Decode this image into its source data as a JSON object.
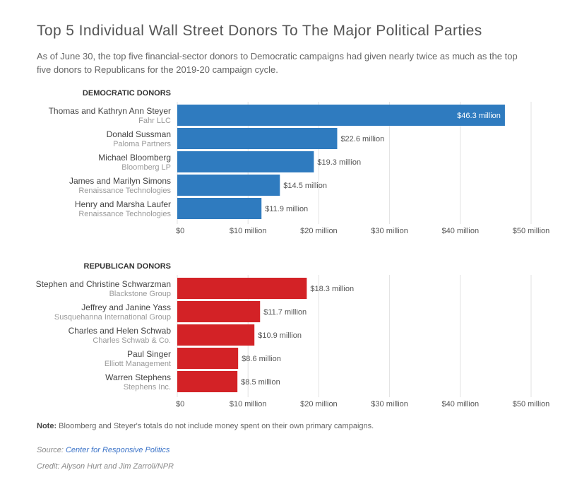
{
  "title": "Top 5 Individual Wall Street Donors To The Major Political Parties",
  "subtitle": "As of June 30, the top five financial-sector donors to Democratic campaigns had given nearly twice as much as the top five donors to Republicans for the 2019-20 campaign cycle.",
  "note": {
    "label": "Note:",
    "text": "Bloomberg and Steyer's totals do not include money spent on their own primary campaigns."
  },
  "source": {
    "label": "Source:",
    "link_text": "Center for Responsive Politics"
  },
  "credit": "Credit: Alyson Hurt and Jim Zarroli/NPR",
  "colors": {
    "democratic": "#2f7bbf",
    "republican": "#d32226",
    "grid": "#e2e2e2"
  },
  "chart_data": [
    {
      "type": "bar",
      "orientation": "horizontal",
      "title": "DEMOCRATIC DONORS",
      "color": "#2f7bbf",
      "categories": [
        "Thomas and Kathryn Ann Steyer",
        "Donald Sussman",
        "Michael Bloomberg",
        "James and Marilyn Simons",
        "Henry and Marsha Laufer"
      ],
      "subcategories": [
        "Fahr LLC",
        "Paloma Partners",
        "Bloomberg LP",
        "Renaissance Technologies",
        "Renaissance Technologies"
      ],
      "values": [
        46.3,
        22.6,
        19.3,
        14.5,
        11.9
      ],
      "value_labels": [
        "$46.3 million",
        "$22.6 million",
        "$19.3 million",
        "$14.5 million",
        "$11.9 million"
      ],
      "xlim": [
        0,
        50
      ],
      "xticks": [
        0,
        10,
        20,
        30,
        40,
        50
      ],
      "xtick_labels": [
        "$0",
        "$10 million",
        "$20 million",
        "$30 million",
        "$40 million",
        "$50 million"
      ],
      "grid": true
    },
    {
      "type": "bar",
      "orientation": "horizontal",
      "title": "REPUBLICAN DONORS",
      "color": "#d32226",
      "categories": [
        "Stephen and Christine Schwarzman",
        "Jeffrey and Janine Yass",
        "Charles and Helen Schwab",
        "Paul Singer",
        "Warren Stephens"
      ],
      "subcategories": [
        "Blackstone Group",
        "Susquehanna International Group",
        "Charles Schwab & Co.",
        "Elliott Management",
        "Stephens Inc."
      ],
      "values": [
        18.3,
        11.7,
        10.9,
        8.6,
        8.5
      ],
      "value_labels": [
        "$18.3 million",
        "$11.7 million",
        "$10.9 million",
        "$8.6 million",
        "$8.5 million"
      ],
      "xlim": [
        0,
        50
      ],
      "xticks": [
        0,
        10,
        20,
        30,
        40,
        50
      ],
      "xtick_labels": [
        "$0",
        "$10 million",
        "$20 million",
        "$30 million",
        "$40 million",
        "$50 million"
      ],
      "grid": true
    }
  ]
}
